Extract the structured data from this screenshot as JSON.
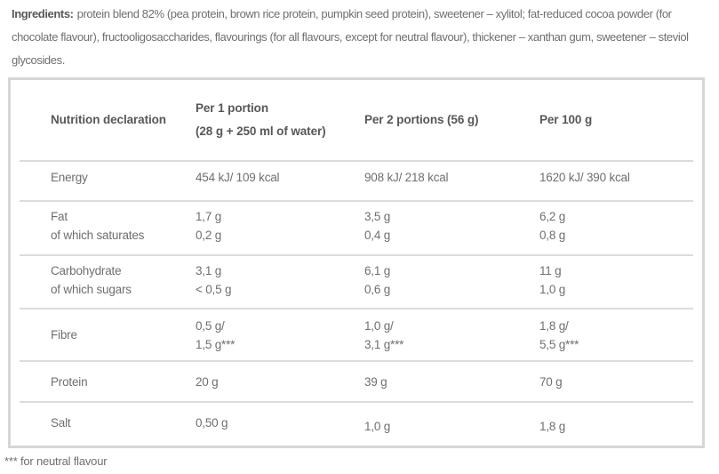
{
  "ingredients": {
    "label": "Ingredients:",
    "text": "protein blend 82% (pea protein, brown rice protein, pumpkin seed protein), sweetener – xylitol; fat-reduced cocoa powder (for chocolate flavour), fructooligosaccharides, flavourings (for all flavours, except for neutral flavour), thickener – xanthan gum, sweetener – steviol glycosides."
  },
  "table": {
    "header": {
      "col1": [
        "Nutrition declaration"
      ],
      "col2": [
        "Per 1 portion",
        "(28 g + 250 ml of water)"
      ],
      "col3": [
        "Per 2 portions (56 g)"
      ],
      "col4": [
        "Per 100 g"
      ]
    },
    "rows": [
      {
        "label": [
          "Energy"
        ],
        "per1": [
          "454 kJ/ 109 kcal"
        ],
        "per2": [
          "908 kJ/ 218 kcal"
        ],
        "per100": [
          "1620 kJ/ 390 kcal"
        ]
      },
      {
        "label": [
          "Fat",
          "of which saturates"
        ],
        "per1": [
          "1,7 g",
          "0,2 g"
        ],
        "per2": [
          "3,5 g",
          "0,4 g"
        ],
        "per100": [
          "6,2 g",
          "0,8 g"
        ]
      },
      {
        "label": [
          "Carbohydrate",
          "of which sugars"
        ],
        "per1": [
          "3,1 g",
          "< 0,5 g"
        ],
        "per2": [
          "6,1 g",
          "0,6 g"
        ],
        "per100": [
          "11 g",
          "1,0 g"
        ]
      },
      {
        "label": [
          "Fibre"
        ],
        "per1": [
          "0,5 g/",
          "1,5 g***"
        ],
        "per2": [
          "1,0 g/",
          "3,1 g***"
        ],
        "per100": [
          "1,8 g/",
          "5,5 g***"
        ]
      },
      {
        "label": [
          "Protein"
        ],
        "per1": [
          "20 g"
        ],
        "per2": [
          "39 g"
        ],
        "per100": [
          "70 g"
        ]
      },
      {
        "label": [
          "Salt"
        ],
        "per1": [
          "0,50 g"
        ],
        "per2": [
          "1,0 g"
        ],
        "per100": [
          "1,8 g"
        ]
      }
    ]
  },
  "footnote": "*** for neutral flavour",
  "colors": {
    "body_text": "#6e6f72",
    "heading_text": "#56575b",
    "table_border": "#d6d6d6",
    "row_divider": "#dcdcdc",
    "background": "#ffffff"
  }
}
